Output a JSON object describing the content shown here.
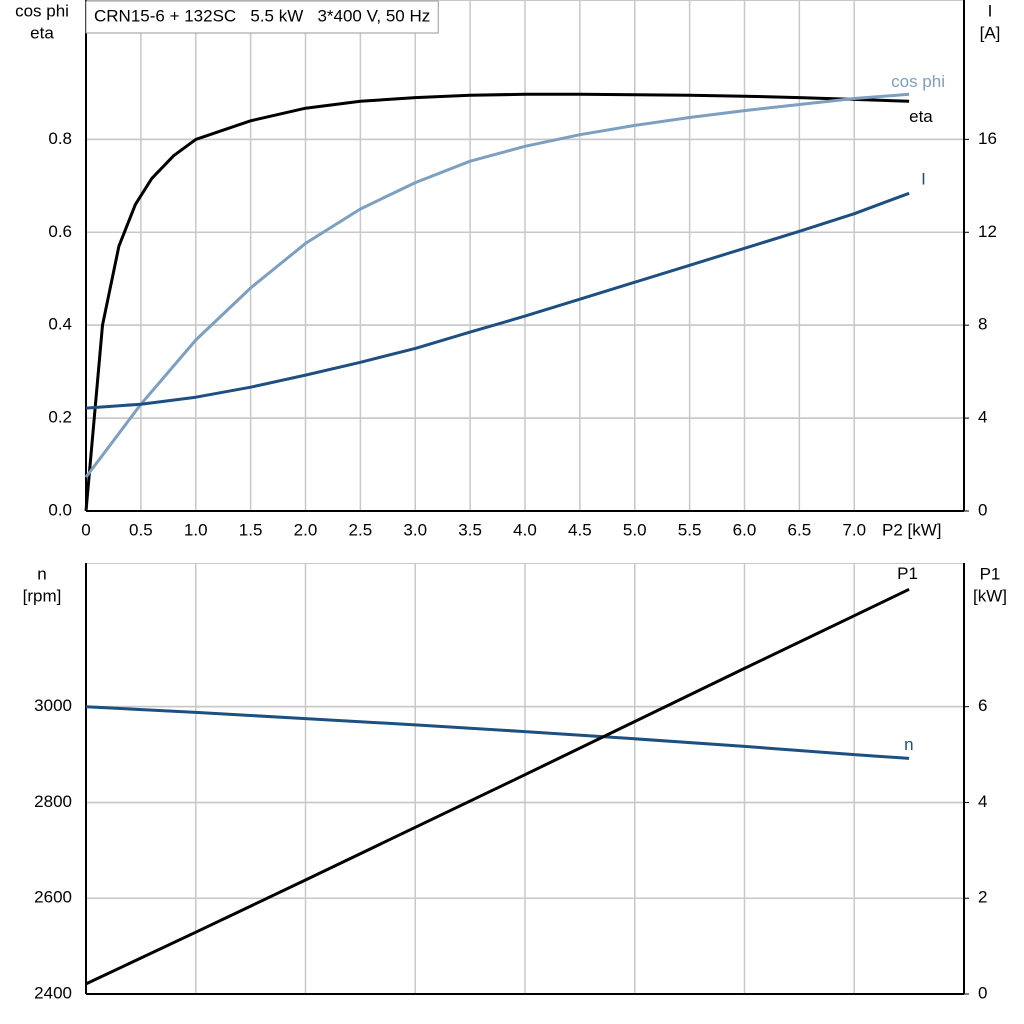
{
  "chart_data": [
    {
      "type": "line",
      "title": "CRN15-6 + 132SC   5.5 kW   3*400 V, 50 Hz",
      "y_label": [
        "cos phi",
        "eta"
      ],
      "y2_label": [
        "I",
        "[A]"
      ],
      "x_label": "P2 [kW]",
      "xlim": [
        0,
        8
      ],
      "xticks": [
        0,
        0.5,
        {
          "value": 1,
          "label": "1.0"
        },
        1.5,
        {
          "value": 2,
          "label": "2.0"
        },
        2.5,
        {
          "value": 3,
          "label": "3.0"
        },
        3.5,
        {
          "value": 4,
          "label": "4.0"
        },
        4.5,
        {
          "value": 5,
          "label": "5.0"
        },
        5.5,
        {
          "value": 6,
          "label": "6.0"
        },
        6.5,
        {
          "value": 7,
          "label": "7.0"
        }
      ],
      "ylim": [
        0,
        1.1
      ],
      "yticks": [
        {
          "value": 0,
          "label": "0.0"
        },
        0.2,
        0.4,
        0.6,
        0.8
      ],
      "y2lim": [
        0,
        22
      ],
      "y2ticks": [
        0,
        4,
        8,
        12,
        16
      ],
      "grid": true,
      "series": [
        {
          "name": "eta",
          "color": "#000000",
          "axis": "y",
          "x": [
            0,
            0.15,
            0.3,
            0.45,
            0.6,
            0.8,
            1,
            1.5,
            2,
            2.5,
            3,
            3.5,
            4,
            4.5,
            5,
            5.5,
            6,
            6.5,
            7,
            7.5
          ],
          "values": [
            0,
            0.4,
            0.57,
            0.66,
            0.716,
            0.765,
            0.8,
            0.84,
            0.867,
            0.882,
            0.89,
            0.895,
            0.897,
            0.897,
            0.896,
            0.895,
            0.893,
            0.89,
            0.886,
            0.882
          ]
        },
        {
          "name": "cos phi",
          "color": "#7d9fc0",
          "axis": "y",
          "x": [
            0,
            0.5,
            1,
            1.5,
            2,
            2.5,
            3,
            3.5,
            4,
            4.5,
            5,
            5.5,
            6,
            6.5,
            7,
            7.5
          ],
          "values": [
            0.073,
            0.23,
            0.368,
            0.48,
            0.576,
            0.65,
            0.707,
            0.753,
            0.785,
            0.81,
            0.83,
            0.847,
            0.862,
            0.875,
            0.888,
            0.897
          ]
        },
        {
          "name": "I",
          "color": "#1d4f80",
          "axis": "y2",
          "x": [
            0,
            0.5,
            1,
            1.5,
            2,
            2.5,
            3,
            3.5,
            4,
            4.5,
            5,
            5.5,
            6,
            6.5,
            7,
            7.5
          ],
          "values": [
            4.43,
            4.6,
            4.9,
            5.33,
            5.85,
            6.4,
            7.0,
            7.7,
            8.39,
            9.12,
            9.85,
            10.58,
            11.31,
            12.04,
            12.8,
            13.68
          ]
        }
      ]
    },
    {
      "type": "line",
      "y_label": [
        "n",
        "[rpm]"
      ],
      "y2_label": [
        "P1",
        "[kW]"
      ],
      "xlim": [
        0,
        8
      ],
      "xticks": [
        1,
        2,
        3,
        4,
        5,
        6,
        7
      ],
      "show_x_tick_labels": false,
      "ylim": [
        2400,
        3300
      ],
      "yticks": [
        2400,
        2600,
        2800,
        3000
      ],
      "y2lim": [
        0,
        9
      ],
      "y2ticks": [
        0,
        2,
        4,
        6
      ],
      "grid": true,
      "series": [
        {
          "name": "n",
          "color": "#1d4f80",
          "axis": "y",
          "x": [
            0,
            1,
            2,
            3,
            4,
            5,
            6,
            7,
            7.5
          ],
          "values": [
            3000,
            2988,
            2975,
            2962,
            2948,
            2933,
            2917,
            2900,
            2892
          ]
        },
        {
          "name": "P1",
          "color": "#000000",
          "axis": "y2",
          "x": [
            0,
            1,
            2,
            3,
            4,
            5,
            6,
            7,
            7.5
          ],
          "values": [
            0.21,
            1.29,
            2.38,
            3.48,
            4.58,
            5.69,
            6.8,
            7.9,
            8.45
          ]
        }
      ]
    }
  ]
}
